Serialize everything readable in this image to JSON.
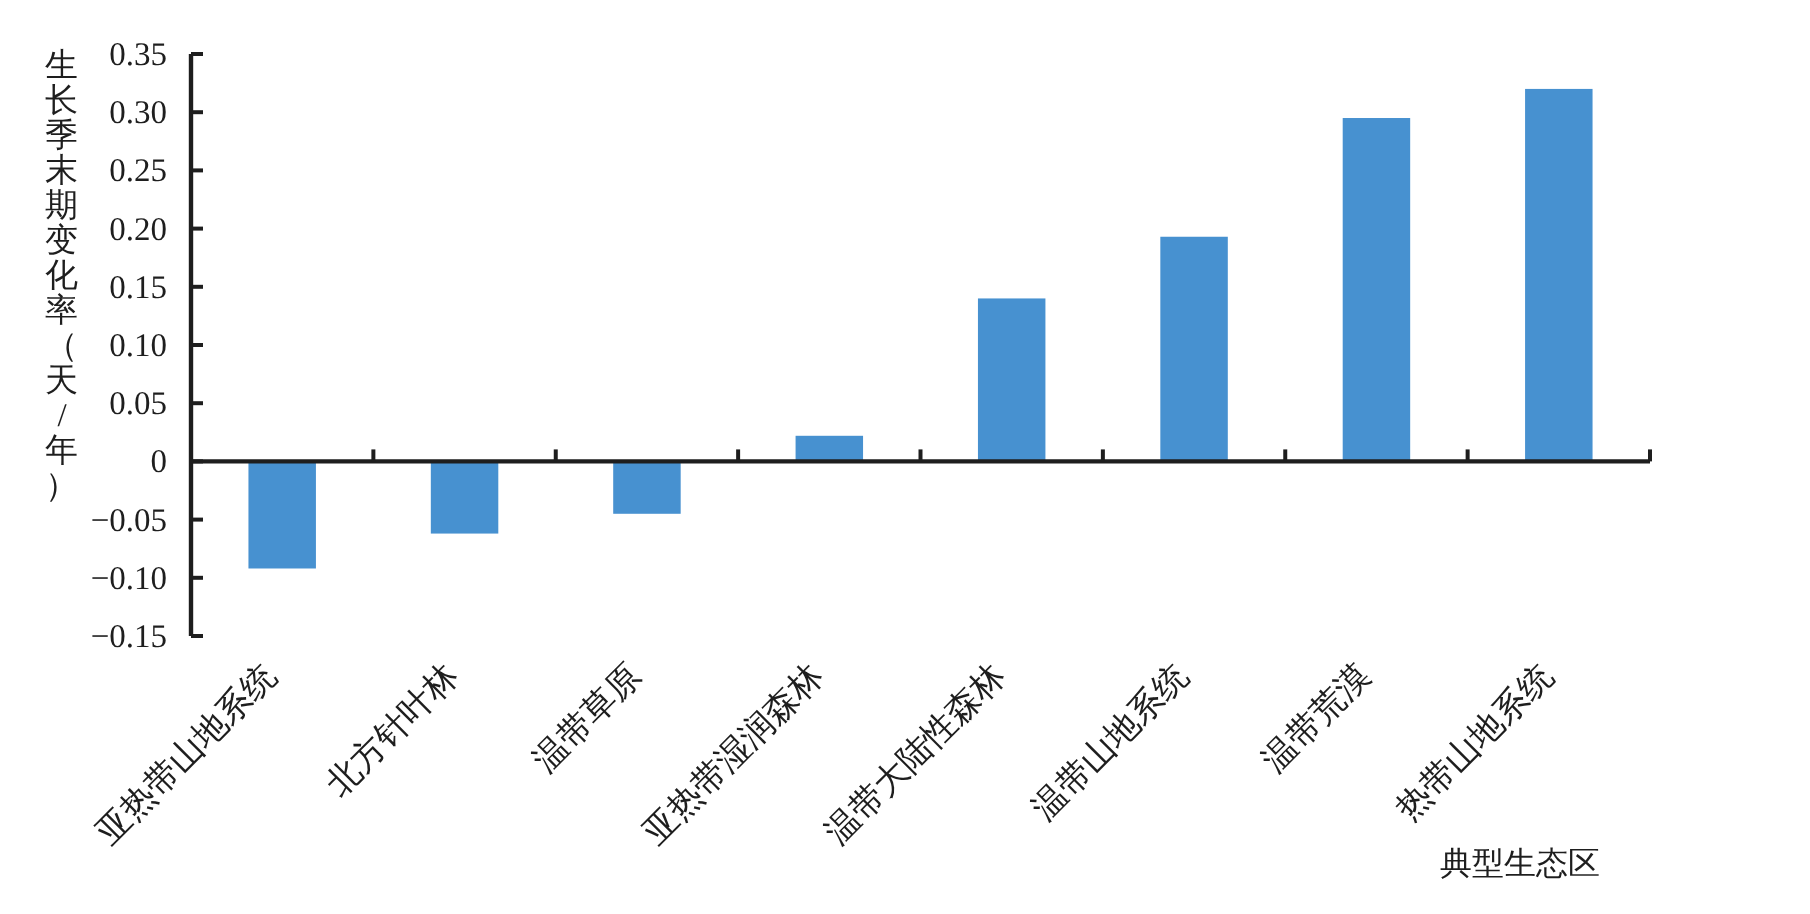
{
  "chart_data": {
    "type": "bar",
    "xlabel": "典型生态区",
    "ylabel": "生长季末期变化率（天/年）",
    "categories": [
      "亚热带山地系统",
      "北方针叶林",
      "温带草原",
      "亚热带湿润森林",
      "温带大陆性森林",
      "温带山地系统",
      "温带荒漠",
      "热带山地系统"
    ],
    "values": [
      -0.092,
      -0.062,
      -0.045,
      0.022,
      0.14,
      0.193,
      0.295,
      0.32
    ],
    "color": "#4791d0",
    "ylim": [
      -0.15,
      0.35
    ],
    "yticks": [
      {
        "value": -0.15,
        "label": "−0.15"
      },
      {
        "value": -0.1,
        "label": "−0.10"
      },
      {
        "value": -0.05,
        "label": "−0.05"
      },
      0,
      0.05,
      {
        "value": 0.1,
        "label": "0.10"
      },
      0.15,
      {
        "value": 0.2,
        "label": "0.20"
      },
      0.25,
      {
        "value": 0.3,
        "label": "0.30"
      },
      0.35
    ]
  }
}
